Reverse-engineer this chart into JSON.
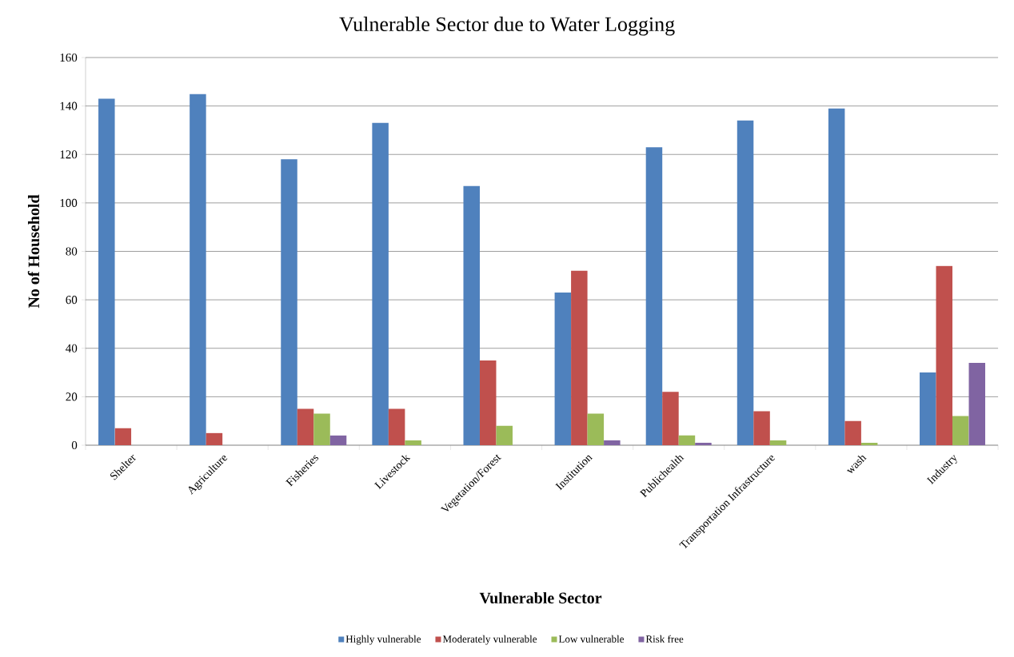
{
  "chart_data": {
    "type": "bar",
    "title": "Vulnerable Sector due to Water Logging",
    "xlabel": "Vulnerable Sector",
    "ylabel": "No of Household",
    "categories": [
      "Shelter",
      "Agriculture",
      "Fisheries",
      "Livestock",
      "Vegetation/Forest",
      "Institution",
      "Publichealth",
      "Transportation Infrastructure",
      "wash",
      "Industry"
    ],
    "series": [
      {
        "name": "Highly vulnerable",
        "color": "#4f81bd",
        "values": [
          143,
          145,
          118,
          133,
          107,
          63,
          123,
          134,
          139,
          30
        ]
      },
      {
        "name": "Moderately vulnerable",
        "color": "#c0504d",
        "values": [
          7,
          5,
          15,
          15,
          35,
          72,
          22,
          14,
          10,
          74
        ]
      },
      {
        "name": "Low vulnerable",
        "color": "#9bbb59",
        "values": [
          0,
          0,
          13,
          2,
          8,
          13,
          4,
          2,
          1,
          12
        ]
      },
      {
        "name": "Risk free",
        "color": "#8064a2",
        "values": [
          0,
          0,
          4,
          0,
          0,
          2,
          1,
          0,
          0,
          34
        ]
      }
    ],
    "ylim": [
      0,
      160
    ],
    "yticks": [
      0,
      20,
      40,
      60,
      80,
      100,
      120,
      140,
      160
    ],
    "grid": "y",
    "legend": "bottom"
  }
}
